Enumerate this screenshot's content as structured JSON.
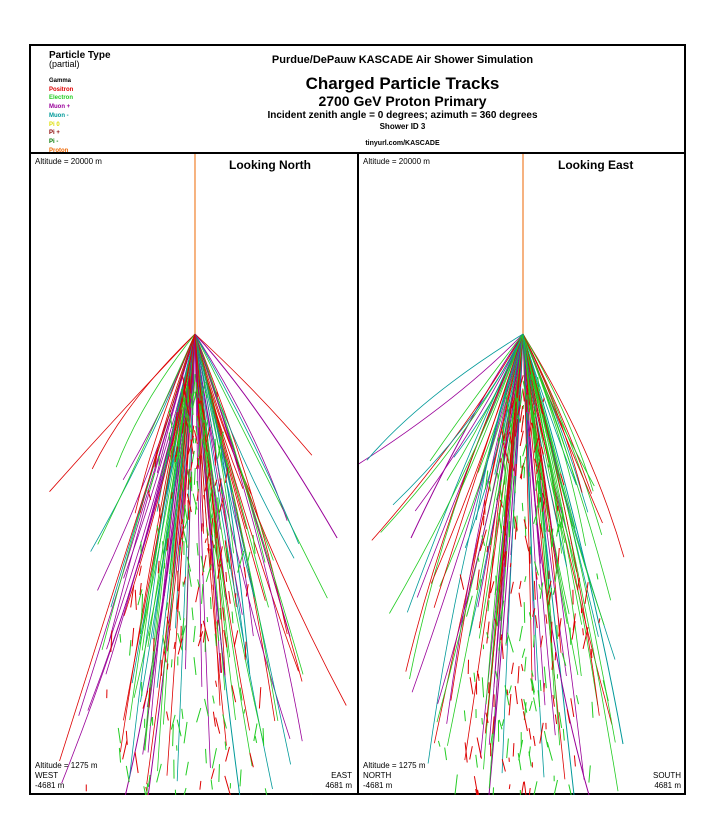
{
  "legend": {
    "title": "Particle Type",
    "subtitle": "(partial)",
    "items": [
      {
        "label": "Gamma",
        "color": "#000000"
      },
      {
        "label": "Positron",
        "color": "#dd0000"
      },
      {
        "label": "Electron",
        "color": "#22cc22"
      },
      {
        "label": "Muon +",
        "color": "#990099"
      },
      {
        "label": "Muon -",
        "color": "#009999"
      },
      {
        "label": "Pi 0",
        "color": "#dddd00"
      },
      {
        "label": "Pi +",
        "color": "#880000"
      },
      {
        "label": "Pi -",
        "color": "#007700"
      },
      {
        "label": "Proton",
        "color": "#ee6600"
      }
    ]
  },
  "header": {
    "sim_title": "Purdue/DePauw KASCADE Air Shower Simulation",
    "main_title": "Charged Particle Tracks",
    "subtitle": "2700 GeV Proton Primary",
    "angle_line": "Incident zenith angle =  0 degrees;  azimuth =  360 degrees",
    "shower_id": "Shower ID 3",
    "url": "tinyurl.com/KASCADE"
  },
  "panels": [
    {
      "key": "north",
      "title": "Looking North",
      "altitude_top": "Altitude = 20000 m",
      "altitude_bottom": "Altitude = 1275 m",
      "left_dir": "WEST",
      "left_coord": "-4681 m",
      "right_dir": "EAST",
      "right_coord": "4681 m"
    },
    {
      "key": "east",
      "title": "Looking East",
      "altitude_top": "Altitude = 20000 m",
      "altitude_bottom": "Altitude = 1275 m",
      "left_dir": "NORTH",
      "left_coord": "-4681 m",
      "right_dir": "SOUTH",
      "right_coord": "4681 m"
    }
  ]
}
